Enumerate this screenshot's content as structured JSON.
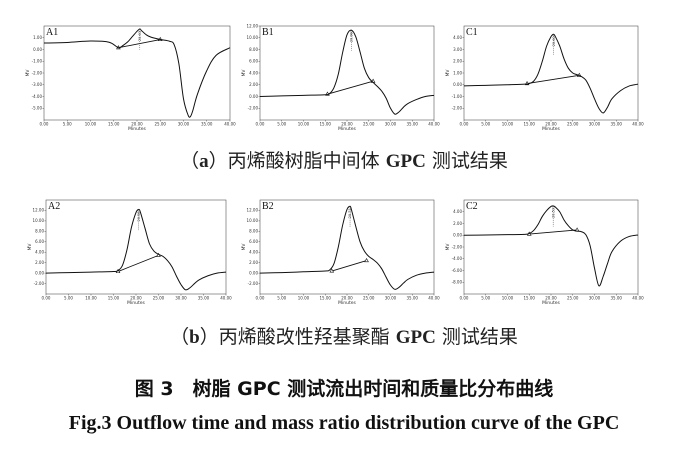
{
  "captions": {
    "row_a": {
      "prefix": "（",
      "letter": "a",
      "rest": "）丙烯酸树脂中间体 ",
      "gpc": "GPC",
      "suffix": " 测试结果"
    },
    "row_b": {
      "prefix": "（",
      "letter": "b",
      "rest": "）丙烯酸改性羟基聚酯 ",
      "gpc": "GPC",
      "suffix": " 测试结果"
    },
    "figure_cn": "图 3　树脂 GPC 测试流出时间和质量比分布曲线",
    "figure_en": "Fig.3   Outflow time and mass ratio distribution curve of the GPC"
  },
  "chart_data": [
    {
      "type": "line",
      "panel": "A1",
      "xlabel": "Minutes",
      "ylabel": "MV",
      "xlim": [
        0,
        40
      ],
      "ylim": [
        -6,
        2
      ],
      "xticks": [
        "0.00",
        "5.00",
        "10.00",
        "15.00",
        "20.00",
        "25.00",
        "30.00",
        "35.00",
        "40.00"
      ],
      "yticks": [
        "1.00",
        "0.00",
        "-1.00",
        "-2.00",
        "-3.00",
        "-4.00",
        "-5.00"
      ],
      "peak_label": "20.633",
      "peak_x": 20.6,
      "series": [
        {
          "x": [
            0,
            5,
            10,
            14,
            16,
            17,
            18,
            19,
            20,
            20.6,
            21,
            22,
            23,
            25,
            27,
            28,
            29,
            30,
            31,
            31.5,
            32,
            33,
            35,
            37,
            40
          ],
          "y": [
            0.55,
            0.6,
            0.72,
            0.62,
            0.15,
            0.35,
            0.65,
            1.1,
            1.55,
            1.75,
            1.6,
            1.25,
            1.05,
            0.85,
            0.7,
            0.4,
            -1.2,
            -4.2,
            -5.6,
            -5.7,
            -5.2,
            -3.8,
            -1.8,
            -0.5,
            0.15
          ]
        }
      ],
      "baseline": {
        "x": [
          16,
          25
        ],
        "y": [
          0.15,
          0.85
        ]
      }
    },
    {
      "type": "line",
      "panel": "B1",
      "xlabel": "Minutes",
      "ylabel": "MV",
      "xlim": [
        0,
        40
      ],
      "ylim": [
        -4,
        12
      ],
      "xticks": [
        "0.00",
        "5.00",
        "10.00",
        "15.00",
        "20.00",
        "25.00",
        "30.00",
        "35.00",
        "40.00"
      ],
      "yticks": [
        "12.00",
        "10.00",
        "8.00",
        "6.00",
        "4.00",
        "2.00",
        "0.00",
        "-2.00"
      ],
      "peak_label": "20.983",
      "peak_x": 21,
      "series": [
        {
          "x": [
            0,
            5,
            10,
            15,
            16,
            17,
            18,
            19,
            20,
            21,
            22,
            23,
            24,
            25,
            26,
            27,
            28,
            29,
            30,
            31,
            32,
            33,
            34,
            36,
            38,
            40
          ],
          "y": [
            0,
            0.1,
            0.2,
            0.3,
            0.5,
            1.5,
            3.8,
            7.5,
            10.5,
            11.3,
            10.2,
            7.6,
            4.8,
            3.2,
            2.4,
            1.7,
            0.9,
            -0.3,
            -2.0,
            -3.0,
            -2.6,
            -1.8,
            -1.2,
            -0.5,
            0,
            0.2
          ]
        }
      ],
      "baseline": {
        "x": [
          15.5,
          26
        ],
        "y": [
          0.4,
          2.6
        ]
      }
    },
    {
      "type": "line",
      "panel": "C1",
      "xlabel": "Minutes",
      "ylabel": "MV",
      "xlim": [
        0,
        40
      ],
      "ylim": [
        -3,
        5
      ],
      "xticks": [
        "0.00",
        "5.00",
        "10.00",
        "15.00",
        "20.00",
        "25.00",
        "30.00",
        "35.00",
        "40.00"
      ],
      "yticks": [
        "4.00",
        "3.00",
        "2.00",
        "1.00",
        "0.00",
        "-1.00",
        "-2.00"
      ],
      "peak_label": "20.600",
      "peak_x": 20.6,
      "series": [
        {
          "x": [
            0,
            5,
            10,
            14,
            15,
            16,
            17,
            18,
            19,
            20,
            20.6,
            21,
            22,
            23,
            24,
            25,
            26,
            27,
            28,
            29,
            30,
            31,
            32,
            33,
            34,
            36,
            38,
            40
          ],
          "y": [
            -0.1,
            -0.05,
            0,
            0.05,
            0.1,
            0.3,
            0.9,
            2.0,
            3.3,
            4.1,
            4.3,
            4.1,
            3.3,
            2.2,
            1.4,
            1.0,
            0.85,
            0.7,
            0.4,
            -0.3,
            -1.2,
            -2.0,
            -2.4,
            -1.9,
            -1.2,
            -0.5,
            -0.1,
            0.05
          ]
        }
      ],
      "baseline": {
        "x": [
          14.5,
          26.5
        ],
        "y": [
          0.1,
          0.8
        ]
      }
    },
    {
      "type": "line",
      "panel": "A2",
      "xlabel": "Minutes",
      "ylabel": "MV",
      "xlim": [
        0,
        40
      ],
      "ylim": [
        -4,
        14
      ],
      "xticks": [
        "0.00",
        "5.00",
        "10.00",
        "15.00",
        "20.00",
        "25.00",
        "30.00",
        "35.00",
        "40.00"
      ],
      "yticks": [
        "12.00",
        "10.00",
        "8.00",
        "6.00",
        "4.00",
        "2.00",
        "0.00",
        "-2.00"
      ],
      "peak_label": "20.583",
      "peak_x": 20.6,
      "series": [
        {
          "x": [
            0,
            5,
            10,
            15,
            16,
            17,
            18,
            19,
            20,
            20.6,
            21,
            22,
            23,
            24,
            25,
            26,
            27,
            28,
            29,
            30,
            31,
            32,
            33,
            34,
            36,
            38,
            40
          ],
          "y": [
            0,
            0.1,
            0.2,
            0.3,
            0.5,
            1.5,
            4.5,
            8.8,
            11.6,
            12.2,
            11.6,
            8.6,
            5.6,
            4.2,
            3.6,
            3.2,
            2.4,
            1.2,
            -0.6,
            -2.2,
            -3.2,
            -2.8,
            -2.0,
            -1.3,
            -0.5,
            0,
            0.2
          ]
        }
      ],
      "baseline": {
        "x": [
          16,
          25
        ],
        "y": [
          0.3,
          3.4
        ]
      }
    },
    {
      "type": "line",
      "panel": "B2",
      "xlabel": "Minutes",
      "ylabel": "MV",
      "xlim": [
        0,
        40
      ],
      "ylim": [
        -4,
        14
      ],
      "xticks": [
        "0.00",
        "5.00",
        "10.00",
        "15.00",
        "20.00",
        "25.00",
        "30.00",
        "35.00",
        "40.00"
      ],
      "yticks": [
        "12.00",
        "10.00",
        "8.00",
        "6.00",
        "4.00",
        "2.00",
        "0.00",
        "-2.00"
      ],
      "peak_label": "20.717",
      "peak_x": 20.7,
      "series": [
        {
          "x": [
            0,
            5,
            10,
            15,
            16,
            17,
            18,
            19,
            20,
            20.7,
            21,
            22,
            23,
            24,
            25,
            26,
            27,
            28,
            29,
            30,
            31,
            32,
            33,
            34,
            36,
            38,
            40
          ],
          "y": [
            0,
            0.1,
            0.25,
            0.4,
            0.6,
            1.8,
            5.0,
            9.2,
            12.2,
            12.8,
            12.2,
            9.0,
            6.0,
            4.2,
            3.2,
            2.6,
            1.9,
            0.8,
            -0.8,
            -2.3,
            -3.1,
            -2.7,
            -1.9,
            -1.2,
            -0.4,
            0,
            0.2
          ]
        }
      ],
      "baseline": {
        "x": [
          16.5,
          24.5
        ],
        "y": [
          0.4,
          2.4
        ]
      }
    },
    {
      "type": "line",
      "panel": "C2",
      "xlabel": "Minutes",
      "ylabel": "MV",
      "xlim": [
        0,
        40
      ],
      "ylim": [
        -10,
        6
      ],
      "xticks": [
        "0.00",
        "5.00",
        "10.00",
        "15.00",
        "20.00",
        "25.00",
        "30.00",
        "35.00",
        "40.00"
      ],
      "yticks": [
        "4.00",
        "2.00",
        "0.00",
        "-2.00",
        "-4.00",
        "-6.00",
        "-8.00"
      ],
      "peak_label": "20.533",
      "peak_x": 20.5,
      "series": [
        {
          "x": [
            0,
            5,
            10,
            14,
            15,
            16,
            17,
            18,
            19,
            20,
            20.5,
            21,
            22,
            23,
            24,
            25,
            26,
            27,
            28,
            29,
            30,
            31,
            32,
            33,
            34,
            36,
            38,
            40
          ],
          "y": [
            0,
            0.05,
            0.1,
            0.15,
            0.3,
            0.8,
            1.8,
            3.2,
            4.2,
            4.9,
            5.0,
            4.8,
            4.0,
            2.6,
            1.6,
            0.9,
            0.7,
            0.6,
            0.1,
            -1.8,
            -5.6,
            -8.6,
            -7.0,
            -4.8,
            -2.8,
            -1.0,
            -0.2,
            0.05
          ]
        }
      ],
      "baseline": {
        "x": [
          15,
          26
        ],
        "y": [
          0.2,
          0.9
        ]
      }
    }
  ]
}
